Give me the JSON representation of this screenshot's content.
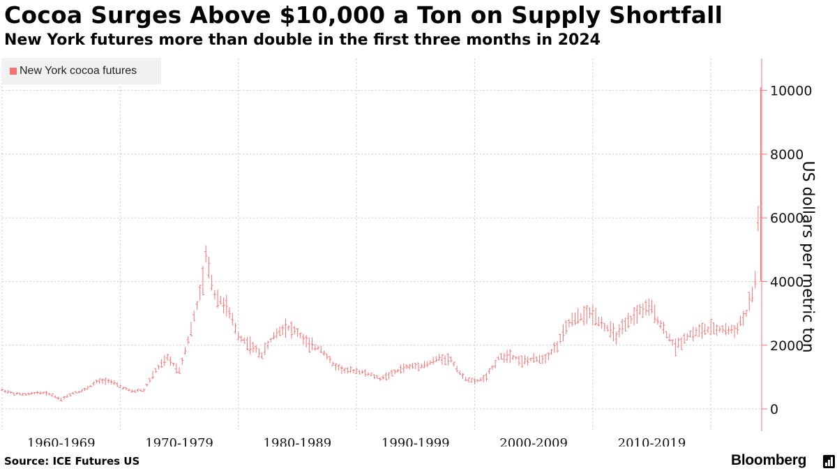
{
  "title": "Cocoa Surges Above $10,000 a Ton on Supply Shortfall",
  "subtitle": "New York futures more than double in the first three months in 2024",
  "source": "Source: ICE Futures US",
  "brand": "Bloomberg",
  "colors": {
    "series": "#f87171",
    "grid": "#c8c8c8",
    "legend_bg": "#f1f1f1"
  },
  "chart_data": {
    "type": "line",
    "style": "ohlc-bars",
    "title": "Cocoa Surges Above $10,000 a Ton on Supply Shortfall",
    "subtitle": "New York futures more than double in the first three months in 2024",
    "xlabel": "",
    "ylabel": "US dollars per metric ton",
    "ylim": [
      -700,
      11000
    ],
    "xlim": [
      1960,
      2024.3
    ],
    "y_axis_position": "right",
    "y_ticks": [
      0,
      2000,
      4000,
      6000,
      8000,
      10000
    ],
    "x_categories": [
      "1960-1969",
      "1970-1979",
      "1980-1989",
      "1990-1999",
      "2000-2009",
      "2010-2019"
    ],
    "grid": true,
    "legend": {
      "position": "top-left",
      "entries": [
        "New York cocoa futures"
      ]
    },
    "series": [
      {
        "name": "New York cocoa futures",
        "x": [
          1960,
          1961,
          1962,
          1963,
          1964,
          1965,
          1966,
          1967,
          1968,
          1969,
          1970,
          1971,
          1972,
          1973,
          1974,
          1974.5,
          1975,
          1976,
          1977,
          1977.25,
          1978,
          1979,
          1980,
          1981,
          1982,
          1983,
          1984,
          1985,
          1986,
          1987,
          1988,
          1989,
          1990,
          1991,
          1992,
          1993,
          1994,
          1995,
          1996,
          1997,
          1998,
          1999,
          2000,
          2001,
          2002,
          2003,
          2004,
          2005,
          2006,
          2007,
          2008,
          2009,
          2010,
          2011,
          2012,
          2013,
          2014,
          2015,
          2016,
          2017,
          2018,
          2019,
          2020,
          2021,
          2022,
          2023,
          2023.5,
          2023.75,
          2024,
          2024.1,
          2024.22
        ],
        "values": [
          600,
          480,
          450,
          520,
          480,
          300,
          500,
          600,
          850,
          900,
          700,
          550,
          600,
          1200,
          1600,
          1400,
          1200,
          2500,
          4000,
          4800,
          3600,
          3200,
          2300,
          2000,
          1700,
          2300,
          2600,
          2400,
          2000,
          1900,
          1400,
          1200,
          1200,
          1100,
          950,
          1100,
          1300,
          1350,
          1400,
          1600,
          1550,
          1000,
          850,
          1000,
          1600,
          1700,
          1500,
          1550,
          1600,
          2000,
          2700,
          2900,
          3000,
          2600,
          2300,
          2700,
          3100,
          3150,
          2500,
          1950,
          2300,
          2450,
          2500,
          2500,
          2450,
          3000,
          3600,
          4000,
          6000,
          8500,
          9900
        ]
      }
    ]
  }
}
